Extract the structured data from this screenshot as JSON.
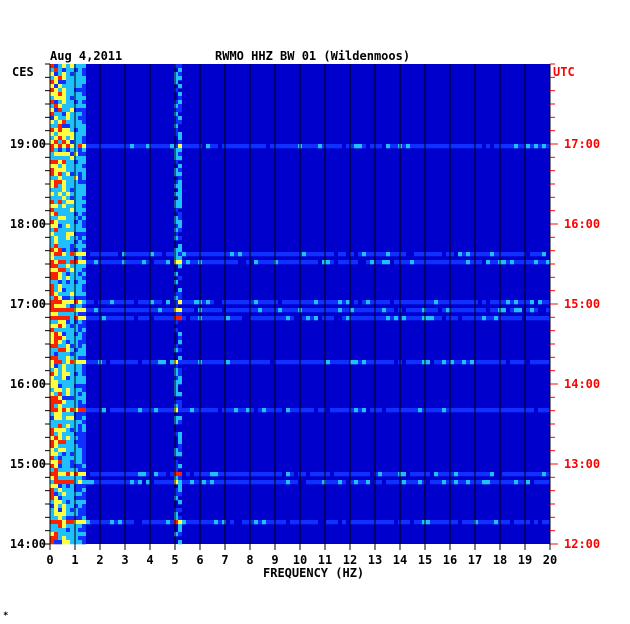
{
  "header": {
    "date": "Aug 4,2011",
    "station": "RWMO HHZ BW 01 (Wildenmoos)"
  },
  "chart_data": {
    "type": "heatmap",
    "xlabel": "FREQUENCY (HZ)",
    "xlim": [
      0,
      20
    ],
    "x_ticks": [
      "0",
      "1",
      "2",
      "3",
      "4",
      "5",
      "6",
      "7",
      "8",
      "9",
      "10",
      "11",
      "12",
      "13",
      "14",
      "15",
      "16",
      "17",
      "18",
      "19",
      "20"
    ],
    "left_axis": {
      "label": "CES",
      "ticks": [
        "19:00",
        "18:00",
        "17:00",
        "16:00",
        "15:00",
        "14:00"
      ],
      "tick_color": "#000000"
    },
    "right_axis": {
      "label": "UTC",
      "ticks": [
        "17:00",
        "16:00",
        "15:00",
        "14:00",
        "13:00",
        "12:00"
      ],
      "tick_color": "#ff0000"
    },
    "time_range_hours": 6,
    "colors": {
      "background": "#0000cc",
      "low": "#1030ff",
      "mid": "#20c0ff",
      "high": "#ffff40",
      "peak": "#ff2000"
    },
    "features": [
      {
        "type": "low-frequency band",
        "freq_range_hz": [
          0.2,
          1.2
        ],
        "description": "persistent energy"
      },
      {
        "type": "line",
        "freq_hz": 5.0,
        "description": "narrow spectral line"
      }
    ]
  },
  "footnote": "*"
}
